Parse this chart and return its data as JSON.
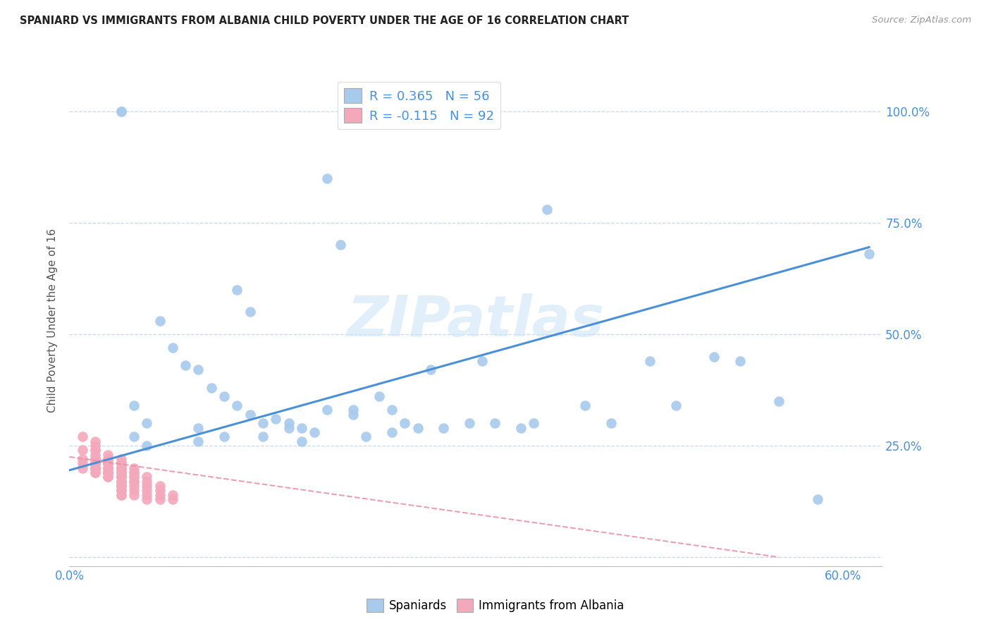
{
  "title": "SPANIARD VS IMMIGRANTS FROM ALBANIA CHILD POVERTY UNDER THE AGE OF 16 CORRELATION CHART",
  "source": "Source: ZipAtlas.com",
  "ylabel": "Child Poverty Under the Age of 16",
  "xlim": [
    0.0,
    0.63
  ],
  "ylim": [
    -0.02,
    1.08
  ],
  "xtick_vals": [
    0.0,
    0.1,
    0.2,
    0.3,
    0.4,
    0.5,
    0.6
  ],
  "xticklabels": [
    "0.0%",
    "",
    "",
    "",
    "",
    "",
    "60.0%"
  ],
  "ytick_vals": [
    0.0,
    0.25,
    0.5,
    0.75,
    1.0
  ],
  "yticklabels": [
    "",
    "25.0%",
    "50.0%",
    "75.0%",
    "100.0%"
  ],
  "legend_blue_R": "R = 0.365",
  "legend_blue_N": "N = 56",
  "legend_pink_R": "R = -0.115",
  "legend_pink_N": "N = 92",
  "blue_color": "#a8caed",
  "pink_color": "#f4a8bb",
  "blue_line_color": "#4a90d9",
  "pink_line_color": "#e88fa5",
  "grid_color": "#c8d8e8",
  "title_color": "#222222",
  "axis_label_color": "#4a90d9",
  "watermark": "ZIPatlas",
  "blue_scatter_x": [
    0.04,
    0.04,
    0.3,
    0.2,
    0.21,
    0.13,
    0.14,
    0.07,
    0.08,
    0.09,
    0.1,
    0.11,
    0.12,
    0.13,
    0.14,
    0.15,
    0.16,
    0.17,
    0.18,
    0.19,
    0.2,
    0.22,
    0.23,
    0.24,
    0.25,
    0.26,
    0.28,
    0.29,
    0.31,
    0.32,
    0.33,
    0.35,
    0.36,
    0.37,
    0.4,
    0.42,
    0.45,
    0.47,
    0.52,
    0.55,
    0.58,
    0.05,
    0.05,
    0.06,
    0.06,
    0.1,
    0.1,
    0.12,
    0.15,
    0.17,
    0.18,
    0.22,
    0.25,
    0.27,
    0.62,
    0.5
  ],
  "blue_scatter_y": [
    1.0,
    1.0,
    1.0,
    0.85,
    0.7,
    0.6,
    0.55,
    0.53,
    0.47,
    0.43,
    0.42,
    0.38,
    0.36,
    0.34,
    0.32,
    0.3,
    0.31,
    0.3,
    0.29,
    0.28,
    0.33,
    0.33,
    0.27,
    0.36,
    0.33,
    0.3,
    0.42,
    0.29,
    0.3,
    0.44,
    0.3,
    0.29,
    0.3,
    0.78,
    0.34,
    0.3,
    0.44,
    0.34,
    0.44,
    0.35,
    0.13,
    0.34,
    0.27,
    0.3,
    0.25,
    0.29,
    0.26,
    0.27,
    0.27,
    0.29,
    0.26,
    0.32,
    0.28,
    0.29,
    0.68,
    0.45
  ],
  "pink_scatter_x": [
    0.01,
    0.01,
    0.01,
    0.01,
    0.01,
    0.02,
    0.02,
    0.02,
    0.02,
    0.02,
    0.02,
    0.02,
    0.02,
    0.02,
    0.02,
    0.02,
    0.02,
    0.02,
    0.02,
    0.02,
    0.02,
    0.02,
    0.02,
    0.02,
    0.02,
    0.02,
    0.03,
    0.03,
    0.03,
    0.03,
    0.03,
    0.03,
    0.03,
    0.03,
    0.03,
    0.03,
    0.03,
    0.03,
    0.03,
    0.03,
    0.03,
    0.03,
    0.03,
    0.04,
    0.04,
    0.04,
    0.04,
    0.04,
    0.04,
    0.04,
    0.04,
    0.04,
    0.04,
    0.04,
    0.04,
    0.04,
    0.04,
    0.04,
    0.04,
    0.04,
    0.04,
    0.04,
    0.04,
    0.04,
    0.04,
    0.04,
    0.04,
    0.04,
    0.04,
    0.04,
    0.05,
    0.05,
    0.05,
    0.05,
    0.05,
    0.05,
    0.05,
    0.05,
    0.05,
    0.05,
    0.06,
    0.06,
    0.06,
    0.06,
    0.06,
    0.06,
    0.07,
    0.07,
    0.07,
    0.07,
    0.08,
    0.08
  ],
  "pink_scatter_y": [
    0.27,
    0.24,
    0.22,
    0.21,
    0.2,
    0.26,
    0.25,
    0.24,
    0.24,
    0.23,
    0.22,
    0.22,
    0.22,
    0.21,
    0.21,
    0.21,
    0.21,
    0.21,
    0.2,
    0.2,
    0.2,
    0.2,
    0.2,
    0.2,
    0.19,
    0.19,
    0.23,
    0.22,
    0.22,
    0.21,
    0.21,
    0.21,
    0.21,
    0.2,
    0.2,
    0.2,
    0.19,
    0.19,
    0.19,
    0.19,
    0.19,
    0.18,
    0.18,
    0.22,
    0.21,
    0.21,
    0.21,
    0.2,
    0.2,
    0.2,
    0.2,
    0.19,
    0.19,
    0.19,
    0.18,
    0.18,
    0.18,
    0.18,
    0.17,
    0.17,
    0.17,
    0.16,
    0.16,
    0.16,
    0.16,
    0.15,
    0.15,
    0.15,
    0.14,
    0.14,
    0.2,
    0.19,
    0.19,
    0.18,
    0.18,
    0.17,
    0.17,
    0.16,
    0.15,
    0.14,
    0.18,
    0.17,
    0.16,
    0.15,
    0.14,
    0.13,
    0.16,
    0.15,
    0.14,
    0.13,
    0.14,
    0.13
  ],
  "blue_trendline_x": [
    0.0,
    0.62
  ],
  "blue_trendline_y": [
    0.195,
    0.695
  ],
  "pink_trendline_x": [
    0.0,
    0.55
  ],
  "pink_trendline_y": [
    0.225,
    0.0
  ]
}
